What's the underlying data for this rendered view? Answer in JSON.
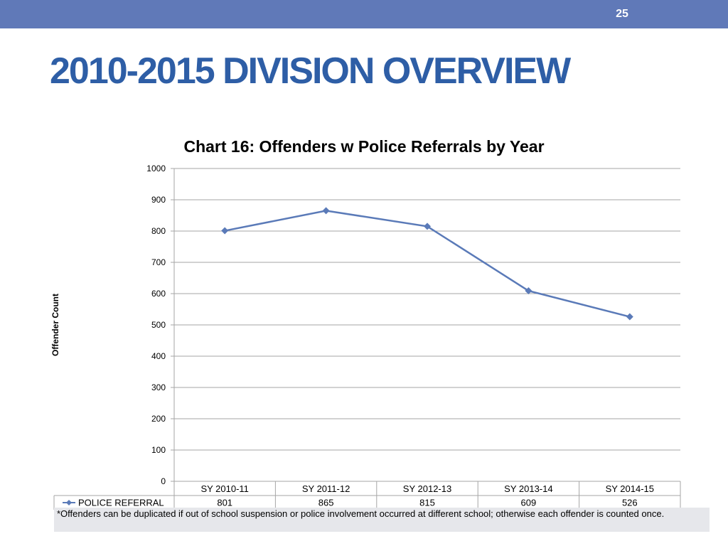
{
  "slide": {
    "page_number": "25",
    "title": "2010-2015 DIVISION OVERVIEW",
    "accent_color": "#6079b8",
    "title_color": "#2e5ea6"
  },
  "chart_data": {
    "type": "line",
    "title": "Chart 16: Offenders w Police Referrals by Year",
    "xlabel": "",
    "ylabel": "Offender Count",
    "ylim": [
      0,
      1000
    ],
    "yticks": [
      0,
      100,
      200,
      300,
      400,
      500,
      600,
      700,
      800,
      900,
      1000
    ],
    "grid": true,
    "categories": [
      "SY 2010-11",
      "SY 2011-12",
      "SY 2012-13",
      "SY 2013-14",
      "SY 2014-15"
    ],
    "series": [
      {
        "name": "POLICE REFERRAL",
        "color": "#5a7ab8",
        "marker": "diamond",
        "values": [
          801,
          865,
          815,
          609,
          526
        ]
      }
    ],
    "legend": "data-table"
  },
  "footnote": "*Offenders can be duplicated if out of school suspension or police involvement occurred at different school; otherwise each offender is counted once."
}
